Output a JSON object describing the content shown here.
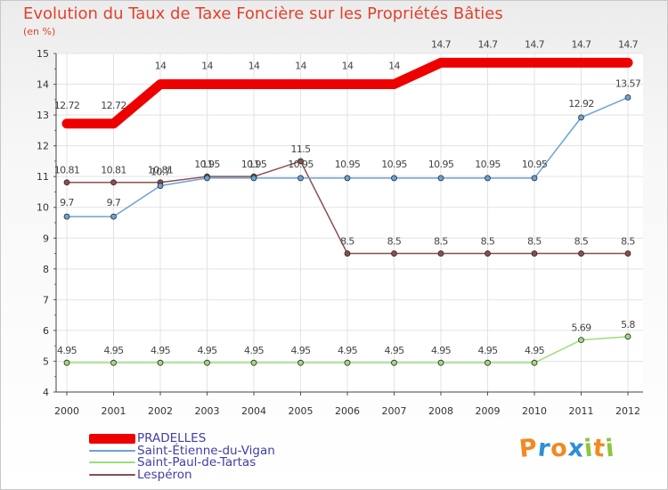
{
  "chart_data": {
    "type": "line",
    "title": "Evolution du Taux de Taxe Foncière sur les Propriétés Bâties",
    "subtitle": "(en %)",
    "xlabel": "",
    "ylabel": "(en %)",
    "x": [
      "2000",
      "2001",
      "2002",
      "2003",
      "2004",
      "2005",
      "2006",
      "2007",
      "2008",
      "2009",
      "2010",
      "2011",
      "2012"
    ],
    "ylim": [
      4,
      15
    ],
    "yticks": [
      "4",
      "5",
      "6",
      "7",
      "8",
      "9",
      "10",
      "11",
      "12",
      "13",
      "14",
      "15"
    ],
    "series": [
      {
        "name": "PRADELLES",
        "color": "#ee0000",
        "values": [
          12.72,
          12.72,
          14,
          14,
          14,
          14,
          14,
          14,
          14.7,
          14.7,
          14.7,
          14.7,
          14.7
        ],
        "labels": [
          "12.72",
          "12.72",
          "14",
          "14",
          "14",
          "14",
          "14",
          "14",
          "14.7",
          "14.7",
          "14.7",
          "14.7",
          "14.7"
        ]
      },
      {
        "name": "Saint-Étienne-du-Vigan",
        "color": "#6aa3d6",
        "values": [
          9.7,
          9.7,
          10.7,
          10.95,
          10.95,
          10.95,
          10.95,
          10.95,
          10.95,
          10.95,
          10.95,
          12.92,
          13.57
        ],
        "labels": [
          "9.7",
          "9.7",
          "10.7",
          "10.95",
          "10.95",
          "10.95",
          "10.95",
          "10.95",
          "10.95",
          "10.95",
          "10.95",
          "12.92",
          "13.57"
        ]
      },
      {
        "name": "Saint-Paul-de-Tartas",
        "color": "#9fdc7c",
        "values": [
          4.95,
          4.95,
          4.95,
          4.95,
          4.95,
          4.95,
          4.95,
          4.95,
          4.95,
          4.95,
          4.95,
          5.69,
          5.8
        ],
        "labels": [
          "4.95",
          "4.95",
          "4.95",
          "4.95",
          "4.95",
          "4.95",
          "4.95",
          "4.95",
          "4.95",
          "4.95",
          "4.95",
          "5.69",
          "5.8"
        ]
      },
      {
        "name": "Lespéron",
        "color": "#8b4e4e",
        "values": [
          10.81,
          10.81,
          10.81,
          11,
          11,
          11.5,
          8.5,
          8.5,
          8.5,
          8.5,
          8.5,
          8.5,
          8.5
        ],
        "labels": [
          "10.81",
          "10.81",
          "10.81",
          "11",
          "11",
          "11.5",
          "8.5",
          "8.5",
          "8.5",
          "8.5",
          "8.5",
          "8.5",
          "8.5"
        ]
      }
    ],
    "legend_position": "bottom-left",
    "grid": true
  },
  "logo": {
    "letters": [
      "P",
      "r",
      "o",
      "x",
      "i",
      "t",
      "i"
    ],
    "colors": [
      "#f08a24",
      "#2b8fd8",
      "#f08a24",
      "#2b8fd8",
      "#8dc63f",
      "#f08a24",
      "#8dc63f"
    ]
  }
}
